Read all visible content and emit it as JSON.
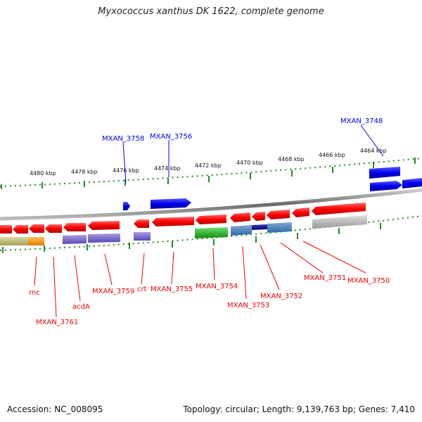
{
  "title": "Myxococcus xanthus DK 1622, complete genome",
  "footer": {
    "accession": "Accession: NC_008095",
    "summary": "Topology: circular; Length: 9,139,763 bp; Genes: 7,410"
  },
  "colors": {
    "forward": "#0000ee",
    "reverse": "#ee0000",
    "backbone": "#888888",
    "ticks": "#228b22"
  },
  "scale": {
    "unit": "kbp",
    "ticks": [
      "4480 kbp",
      "4478 kbp",
      "4476 kbp",
      "4474 kbp",
      "4472 kbp",
      "4470 kbp",
      "4468 kbp",
      "4466 kbp",
      "4464 kbp"
    ]
  },
  "forward_labels": [
    "MXAN_3758",
    "MXAN_3756",
    "MXAN_3748"
  ],
  "reverse_labels": [
    "rnc",
    "MXAN_3761",
    "acdA",
    "MXAN_3759",
    "crt",
    "MXAN_3755",
    "MXAN_3754",
    "MXAN_3753",
    "MXAN_3752",
    "MXAN_3751",
    "MXAN_3750"
  ]
}
